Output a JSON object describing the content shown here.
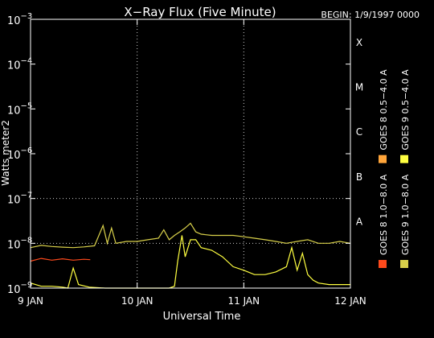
{
  "chart_data": {
    "type": "line",
    "title": "X−Ray Flux (Five Minute)",
    "begin_label": "BEGIN: 1/9/1997 0000",
    "xlabel": "Universal Time",
    "ylabel": "Watts meter2",
    "y_scale": "log",
    "ylim": [
      1e-09,
      0.001
    ],
    "y_ticks": [
      {
        "base": "10",
        "exp": "−3"
      },
      {
        "base": "10",
        "exp": "−4"
      },
      {
        "base": "10",
        "exp": "−5"
      },
      {
        "base": "10",
        "exp": "−6"
      },
      {
        "base": "10",
        "exp": "−7"
      },
      {
        "base": "10",
        "exp": "−8"
      },
      {
        "base": "10",
        "exp": "−9"
      }
    ],
    "xlim_days": [
      9,
      12
    ],
    "x_ticks": [
      "9 JAN",
      "10 JAN",
      "11 JAN",
      "12 JAN"
    ],
    "flare_classes": [
      "X",
      "M",
      "C",
      "B",
      "A"
    ],
    "grid": "dotted vertical lines at day boundaries, dotted horizontal lines at class thresholds",
    "series": [
      {
        "name": "GOES 8 1.0−8.0 A",
        "color": "#ff4a1c",
        "x_day": [
          9.0,
          9.1,
          9.2,
          9.3,
          9.4,
          9.5,
          9.56
        ],
        "y": [
          4e-09,
          4.6e-09,
          4.2e-09,
          4.5e-09,
          4.2e-09,
          4.4e-09,
          4.3e-09
        ]
      },
      {
        "name": "GOES 8 0.5−4.0 A",
        "color": "#ffa53a",
        "x_day": [],
        "y": []
      },
      {
        "name": "GOES 9 1.0−8.0 A",
        "color": "#d8d04a",
        "x_day": [
          9.0,
          9.1,
          9.2,
          9.3,
          9.4,
          9.5,
          9.6,
          9.68,
          9.72,
          9.76,
          9.8,
          9.9,
          10.0,
          10.1,
          10.2,
          10.25,
          10.3,
          10.35,
          10.4,
          10.45,
          10.5,
          10.55,
          10.6,
          10.7,
          10.8,
          10.9,
          11.0,
          11.1,
          11.2,
          11.3,
          11.4,
          11.5,
          11.6,
          11.7,
          11.8,
          11.9,
          12.0
        ],
        "y": [
          8e-09,
          9e-09,
          8.5e-09,
          8.2e-09,
          8e-09,
          8.3e-09,
          8.8e-09,
          2.5e-08,
          1e-08,
          2.2e-08,
          1e-08,
          1.1e-08,
          1.1e-08,
          1.2e-08,
          1.3e-08,
          2e-08,
          1.2e-08,
          1.5e-08,
          1.8e-08,
          2.2e-08,
          2.8e-08,
          1.8e-08,
          1.6e-08,
          1.5e-08,
          1.5e-08,
          1.5e-08,
          1.4e-08,
          1.3e-08,
          1.2e-08,
          1.1e-08,
          1e-08,
          1.1e-08,
          1.2e-08,
          1e-08,
          1e-08,
          1.1e-08,
          1e-08
        ]
      },
      {
        "name": "GOES 9 0.5−4.0 A",
        "color": "#ffff40",
        "x_day": [
          9.0,
          9.1,
          9.2,
          9.3,
          9.35,
          9.4,
          9.45,
          9.55,
          9.7,
          9.8,
          9.9,
          10.0,
          10.1,
          10.2,
          10.25,
          10.3,
          10.35,
          10.38,
          10.42,
          10.45,
          10.5,
          10.55,
          10.6,
          10.7,
          10.8,
          10.9,
          11.0,
          11.1,
          11.2,
          11.3,
          11.4,
          11.45,
          11.5,
          11.55,
          11.6,
          11.65,
          11.7,
          11.8,
          11.9,
          12.0
        ],
        "y": [
          1.3e-09,
          1.1e-09,
          1.1e-09,
          1.05e-09,
          1e-09,
          2.8e-09,
          1.2e-09,
          1.05e-09,
          1e-09,
          1e-09,
          1e-09,
          1e-09,
          1e-09,
          1e-09,
          1e-09,
          1e-09,
          1.1e-09,
          4e-09,
          1.5e-08,
          5e-09,
          1.2e-08,
          1.2e-08,
          8e-09,
          7e-09,
          5e-09,
          3e-09,
          2.5e-09,
          2e-09,
          2e-09,
          2.3e-09,
          3e-09,
          8e-09,
          2.5e-09,
          6e-09,
          2e-09,
          1.5e-09,
          1.3e-09,
          1.2e-09,
          1.2e-09,
          1.2e-09
        ]
      }
    ]
  }
}
